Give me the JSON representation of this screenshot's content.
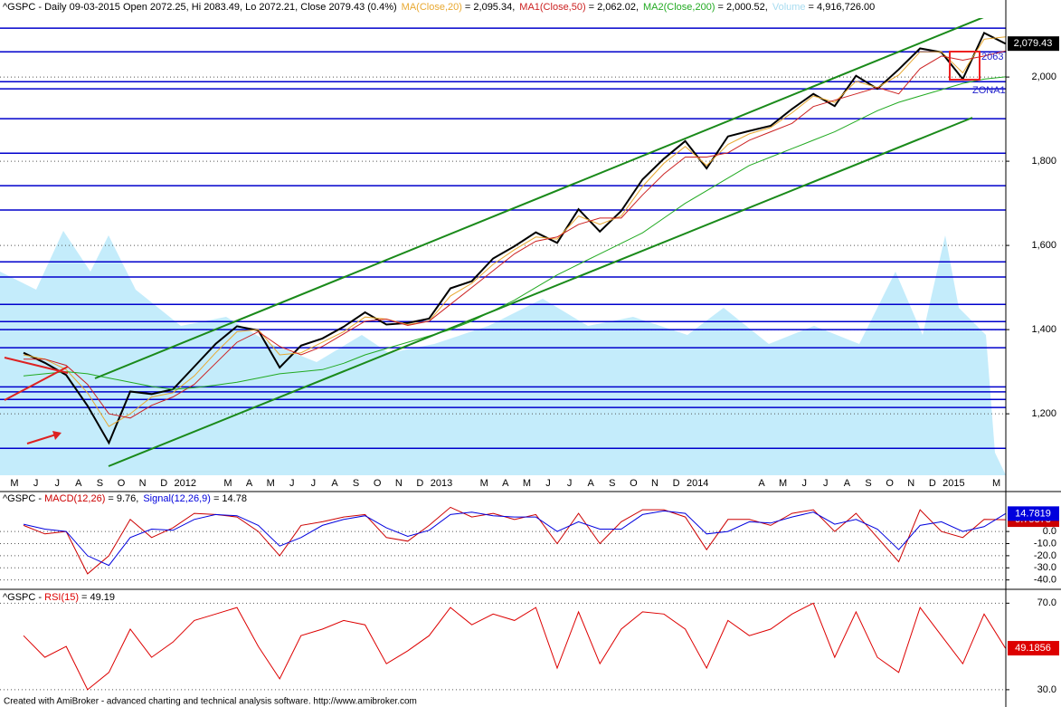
{
  "chart_data": [
    {
      "type": "line",
      "title": "^GSPC - Daily 09-03-2015 Open 2072.25, Hi 2083.49, Lo 2072.21, Close 2079.43 (0.4%)",
      "categories": [
        "M",
        "J",
        "J",
        "A",
        "S",
        "O",
        "N",
        "D",
        "2012",
        null,
        "M",
        "A",
        "M",
        "J",
        "J",
        "A",
        "S",
        "O",
        "N",
        "D",
        "2013",
        null,
        "M",
        "A",
        "M",
        "J",
        "J",
        "A",
        "S",
        "O",
        "N",
        "D",
        "2014",
        null,
        null,
        "A",
        "M",
        "J",
        "J",
        "A",
        "S",
        "O",
        "N",
        "D",
        "2015",
        null,
        "M"
      ],
      "series": [
        {
          "color": "#000000",
          "last_label": "2,079.43",
          "values": [
            1345,
            1321,
            1292,
            1219,
            1131,
            1253,
            1247,
            1258,
            1312,
            1366,
            1408,
            1398,
            1310,
            1362,
            1379,
            1407,
            1441,
            1412,
            1416,
            1426,
            1498,
            1515,
            1569,
            1598,
            1631,
            1606,
            1686,
            1633,
            1682,
            1757,
            1806,
            1848,
            1783,
            1859,
            1872,
            1884,
            1924,
            1960,
            1931,
            2003,
            1972,
            2018,
            2068,
            2059,
            1995,
            2105,
            2079.43
          ]
        },
        {
          "name": "MA(Close,20)",
          "legend_value": "= 2,095.34,",
          "color": "#e8a830",
          "values": [
            1340,
            1330,
            1305,
            1250,
            1170,
            1200,
            1240,
            1250,
            1290,
            1345,
            1395,
            1400,
            1340,
            1345,
            1370,
            1395,
            1430,
            1425,
            1412,
            1420,
            1480,
            1510,
            1555,
            1590,
            1620,
            1615,
            1670,
            1650,
            1670,
            1740,
            1795,
            1835,
            1790,
            1840,
            1865,
            1880,
            1915,
            1955,
            1940,
            1990,
            1975,
            2005,
            2060,
            2060,
            2010,
            2090,
            2095.34
          ]
        },
        {
          "name": "MA1(Close,50)",
          "legend_value": "= 2,062.02,",
          "color": "#cc2222",
          "values": [
            1330,
            1330,
            1315,
            1270,
            1200,
            1190,
            1220,
            1240,
            1270,
            1320,
            1370,
            1395,
            1360,
            1340,
            1360,
            1390,
            1420,
            1425,
            1410,
            1420,
            1460,
            1500,
            1540,
            1580,
            1610,
            1620,
            1650,
            1665,
            1665,
            1720,
            1770,
            1810,
            1810,
            1820,
            1850,
            1870,
            1890,
            1930,
            1945,
            1960,
            1975,
            1960,
            2020,
            2050,
            2040,
            2050,
            2062.02
          ]
        },
        {
          "name": "MA2(Close,200)",
          "legend_value": "= 2,000.52,",
          "color": "#22aa22",
          "values": [
            1290,
            1295,
            1300,
            1295,
            1285,
            1275,
            1265,
            1258,
            1262,
            1268,
            1275,
            1285,
            1295,
            1300,
            1305,
            1320,
            1340,
            1355,
            1370,
            1385,
            1400,
            1420,
            1445,
            1470,
            1500,
            1530,
            1555,
            1580,
            1605,
            1630,
            1665,
            1700,
            1730,
            1760,
            1790,
            1810,
            1830,
            1850,
            1870,
            1895,
            1920,
            1940,
            1955,
            1970,
            1985,
            1995,
            2000.52
          ]
        }
      ],
      "volume": {
        "name": "Volume",
        "legend_value": "= 4,916,726.00",
        "color": "#a8dcf0"
      },
      "levels": [
        2116,
        2060,
        1989,
        1972,
        1901,
        1819,
        1742,
        1684,
        1561,
        1525,
        1460,
        1419,
        1400,
        1357,
        1264,
        1252,
        1234,
        1215,
        1118
      ],
      "level_color": "#0000cc",
      "annotations": [
        "2063",
        "ZONA1"
      ],
      "ylim": [
        1054,
        2140
      ],
      "yticks": [
        {
          "value": 2000,
          "label": "2,000"
        },
        {
          "value": 1800,
          "label": "1,800"
        },
        {
          "value": 1600,
          "label": "1,600"
        },
        {
          "value": 1400,
          "label": "1,400"
        },
        {
          "value": 1200,
          "label": "1,200"
        }
      ],
      "grid": true
    },
    {
      "type": "line",
      "prefix": "^GSPC - ",
      "series": [
        {
          "name": "MACD(12,26)",
          "legend_value": "= 9.76,",
          "color": "#cc0000",
          "last_label": "9.75878",
          "values": [
            5,
            -2,
            0,
            -35,
            -20,
            10,
            -5,
            3,
            15,
            14,
            12,
            0,
            -20,
            5,
            8,
            12,
            14,
            -5,
            -8,
            5,
            20,
            12,
            15,
            10,
            14,
            -10,
            15,
            -10,
            8,
            18,
            18,
            12,
            -15,
            10,
            10,
            5,
            15,
            18,
            0,
            15,
            -5,
            -25,
            18,
            0,
            -5,
            10,
            9.75878
          ]
        },
        {
          "name": "Signal(12,26,9)",
          "legend_value": "= 14.78",
          "color": "#0000dd",
          "last_label": "14.7819",
          "values": [
            6,
            2,
            0,
            -20,
            -28,
            -5,
            2,
            1,
            10,
            14,
            13,
            5,
            -12,
            -5,
            5,
            10,
            13,
            3,
            -4,
            1,
            14,
            16,
            13,
            12,
            12,
            0,
            8,
            2,
            2,
            14,
            17,
            15,
            -2,
            0,
            8,
            7,
            12,
            16,
            6,
            10,
            2,
            -15,
            5,
            8,
            0,
            4,
            14.7819
          ]
        }
      ],
      "ylim": [
        -47,
        31.5
      ],
      "yticks": [
        {
          "value": 0,
          "label": "0.0"
        },
        {
          "value": -10,
          "label": "-10.0"
        },
        {
          "value": -20,
          "label": "-20.0"
        },
        {
          "value": -30,
          "label": "-30.0"
        },
        {
          "value": -40,
          "label": "-40.0"
        }
      ],
      "grid": true
    },
    {
      "type": "line",
      "prefix": "^GSPC - ",
      "series": [
        {
          "name": "RSI(15)",
          "legend_value": "= 49.19",
          "color": "#dd0000",
          "last_label": "49.1856",
          "values": [
            55,
            45,
            50,
            30,
            38,
            58,
            45,
            52,
            62,
            65,
            68,
            50,
            35,
            55,
            58,
            62,
            60,
            42,
            48,
            55,
            68,
            60,
            65,
            62,
            68,
            40,
            66,
            42,
            58,
            66,
            65,
            58,
            40,
            62,
            55,
            58,
            65,
            70,
            45,
            66,
            45,
            38,
            68,
            55,
            42,
            65,
            49.1856
          ]
        }
      ],
      "ylim": [
        22,
        76
      ],
      "yticks": [
        {
          "value": 70,
          "label": "70.0"
        },
        {
          "value": 30,
          "label": "30.0"
        }
      ],
      "grid": true
    }
  ],
  "footer": "Created with AmiBroker - advanced charting and technical analysis software. http://www.amibroker.com"
}
